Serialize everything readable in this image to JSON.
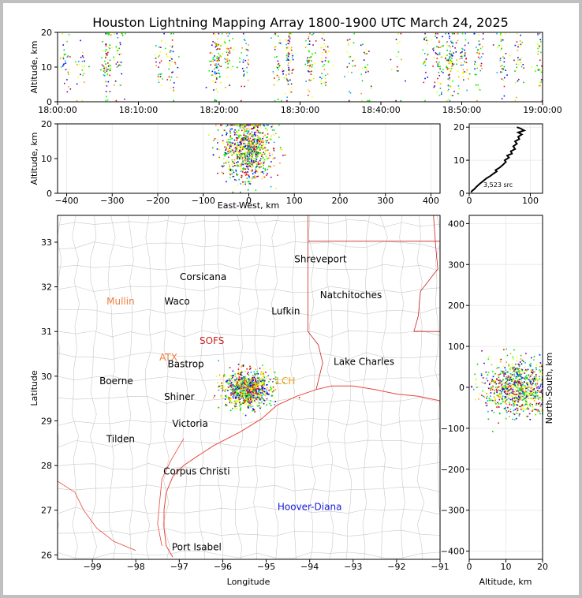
{
  "title": "Houston Lightning Mapping Array 1800-1900 UTC March 24, 2025",
  "colors": {
    "coast": "#e8473a",
    "county": "#c8c8c8",
    "state": "#cc2222",
    "bg": "#ffffff"
  },
  "chart_data": [
    {
      "type": "scatter",
      "panel": "altitude-vs-time",
      "ylabel": "Altitude, km",
      "ylim": [
        0,
        20
      ],
      "yticks": [
        "0",
        "10",
        "20"
      ],
      "xlim": [
        "18:00:00",
        "19:00:00"
      ],
      "xticks": [
        "18:00:00",
        "18:10:00",
        "18:20:00",
        "18:30:00",
        "18:40:00",
        "18:50:00",
        "19:00:00"
      ],
      "color_scale": "time (blue→green→yellow→red)"
    },
    {
      "type": "scatter",
      "panel": "altitude-vs-east-west",
      "xlabel": "East-West, km",
      "ylabel": "Altitude, km",
      "xlim": [
        -420,
        420
      ],
      "xticks": [
        "−400",
        "−300",
        "−200",
        "−100",
        "0",
        "100",
        "200",
        "300",
        "400"
      ],
      "ylim": [
        0,
        20
      ],
      "yticks": [
        "0",
        "10",
        "20"
      ]
    },
    {
      "type": "line",
      "panel": "altitude-histogram",
      "xlim": [
        0,
        120
      ],
      "xticks": [
        "0",
        "100"
      ],
      "ylim": [
        0,
        21
      ],
      "yticks": [
        "0",
        "10",
        "20"
      ],
      "annotation": "3,523 src",
      "points": [
        [
          3,
          0.3
        ],
        [
          5,
          0.8
        ],
        [
          8,
          1.2
        ],
        [
          12,
          2
        ],
        [
          18,
          3
        ],
        [
          22,
          3.6
        ],
        [
          28,
          4.5
        ],
        [
          35,
          5.3
        ],
        [
          40,
          6
        ],
        [
          45,
          6.6
        ],
        [
          43,
          7
        ],
        [
          50,
          7.8
        ],
        [
          55,
          8.6
        ],
        [
          60,
          9.5
        ],
        [
          58,
          10
        ],
        [
          65,
          10.8
        ],
        [
          62,
          11.4
        ],
        [
          70,
          12
        ],
        [
          68,
          12.7
        ],
        [
          75,
          13.4
        ],
        [
          72,
          14.2
        ],
        [
          78,
          15
        ],
        [
          75,
          15.7
        ],
        [
          82,
          16.4
        ],
        [
          80,
          17.1
        ],
        [
          86,
          17.8
        ],
        [
          80,
          18.4
        ],
        [
          90,
          19
        ],
        [
          84,
          19.6
        ],
        [
          78,
          20
        ]
      ]
    },
    {
      "type": "scatter",
      "panel": "plan-view-map",
      "xlabel": "Longitude",
      "ylabel": "Latitude",
      "xlim": [
        -99.8,
        -91
      ],
      "ylim": [
        25.9,
        33.6
      ],
      "xticks": [
        "−99",
        "−98",
        "−97",
        "−96",
        "−95",
        "−94",
        "−93",
        "−92",
        "−91"
      ],
      "yticks": [
        "26",
        "27",
        "28",
        "29",
        "30",
        "31",
        "32",
        "33"
      ],
      "cities": [
        {
          "name": "Shreveport",
          "lon": -93.75,
          "lat": 32.55,
          "color": "#000000"
        },
        {
          "name": "Corsicana",
          "lon": -96.45,
          "lat": 32.15,
          "color": "#000000"
        },
        {
          "name": "Natchitoches",
          "lon": -93.05,
          "lat": 31.75,
          "color": "#000000"
        },
        {
          "name": "Mullin",
          "lon": -98.35,
          "lat": 31.6,
          "color": "#f07f42"
        },
        {
          "name": "Waco",
          "lon": -97.05,
          "lat": 31.6,
          "color": "#000000"
        },
        {
          "name": "Lufkin",
          "lon": -94.55,
          "lat": 31.38,
          "color": "#000000"
        },
        {
          "name": "Lake Charles",
          "lon": -92.75,
          "lat": 30.25,
          "color": "#000000"
        },
        {
          "name": "ATX",
          "lon": -97.25,
          "lat": 30.35,
          "color": "#f07f42"
        },
        {
          "name": "Bastrop",
          "lon": -96.85,
          "lat": 30.2,
          "color": "#000000"
        },
        {
          "name": "SOFS",
          "lon": -96.25,
          "lat": 30.72,
          "color": "#cc2222"
        },
        {
          "name": "LCH",
          "lon": -94.55,
          "lat": 29.82,
          "color": "#f5a020"
        },
        {
          "name": "Boerne",
          "lon": -98.45,
          "lat": 29.82,
          "color": "#000000"
        },
        {
          "name": "Shiner",
          "lon": -97.0,
          "lat": 29.47,
          "color": "#000000"
        },
        {
          "name": "Victoria",
          "lon": -96.75,
          "lat": 28.87,
          "color": "#000000"
        },
        {
          "name": "Tilden",
          "lon": -98.35,
          "lat": 28.52,
          "color": "#000000"
        },
        {
          "name": "Corpus Christi",
          "lon": -96.6,
          "lat": 27.8,
          "color": "#000000"
        },
        {
          "name": "Hoover-Diana",
          "lon": -94.0,
          "lat": 27.0,
          "color": "#1a1adc"
        },
        {
          "name": "Port Isabel",
          "lon": -96.6,
          "lat": 26.1,
          "color": "#000000"
        }
      ],
      "activity_center": {
        "lon": -95.45,
        "lat": 29.72
      }
    },
    {
      "type": "scatter",
      "panel": "north-south-vs-altitude",
      "xlabel": "Altitude, km",
      "ylabel": "North-South, km",
      "xlim": [
        0,
        20
      ],
      "xticks": [
        "0",
        "10",
        "20"
      ],
      "ylim": [
        -420,
        420
      ],
      "yticks": [
        "−400",
        "−300",
        "−200",
        "−100",
        "0",
        "100",
        "200",
        "300",
        "400"
      ]
    }
  ]
}
